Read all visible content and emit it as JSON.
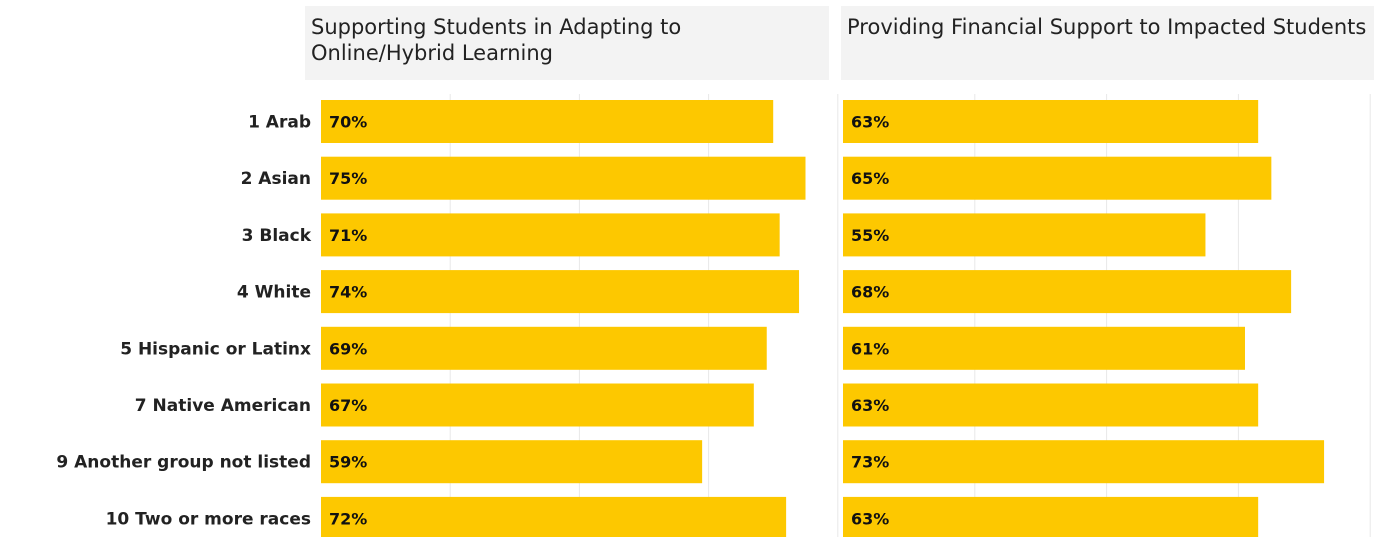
{
  "colors": {
    "bar": "#fdc800",
    "grid": "#e8e8e8",
    "header_bg": "#f3f3f3"
  },
  "chart_data": [
    {
      "type": "bar",
      "orientation": "horizontal",
      "title": "Supporting Students in Adapting to Online/Hybrid Learning",
      "categories": [
        "1 Arab",
        "2 Asian",
        "3 Black",
        "4 White",
        "5 Hispanic or Latinx",
        "7 Native American",
        "9 Another group not listed",
        "10 Two or more races"
      ],
      "values": [
        70,
        75,
        71,
        74,
        69,
        67,
        59,
        72
      ],
      "value_labels": [
        "70%",
        "75%",
        "71%",
        "74%",
        "69%",
        "67%",
        "59%",
        "72%"
      ],
      "xlim": [
        0,
        80
      ],
      "grid": true
    },
    {
      "type": "bar",
      "orientation": "horizontal",
      "title": "Providing Financial Support to Impacted Students",
      "categories": [
        "1 Arab",
        "2 Asian",
        "3 Black",
        "4 White",
        "5 Hispanic or Latinx",
        "7 Native American",
        "9 Another group not listed",
        "10 Two or more races"
      ],
      "values": [
        63,
        65,
        55,
        68,
        61,
        63,
        73,
        63
      ],
      "value_labels": [
        "63%",
        "65%",
        "55%",
        "68%",
        "61%",
        "63%",
        "73%",
        "63%"
      ],
      "xlim": [
        0,
        80
      ],
      "grid": true
    }
  ]
}
